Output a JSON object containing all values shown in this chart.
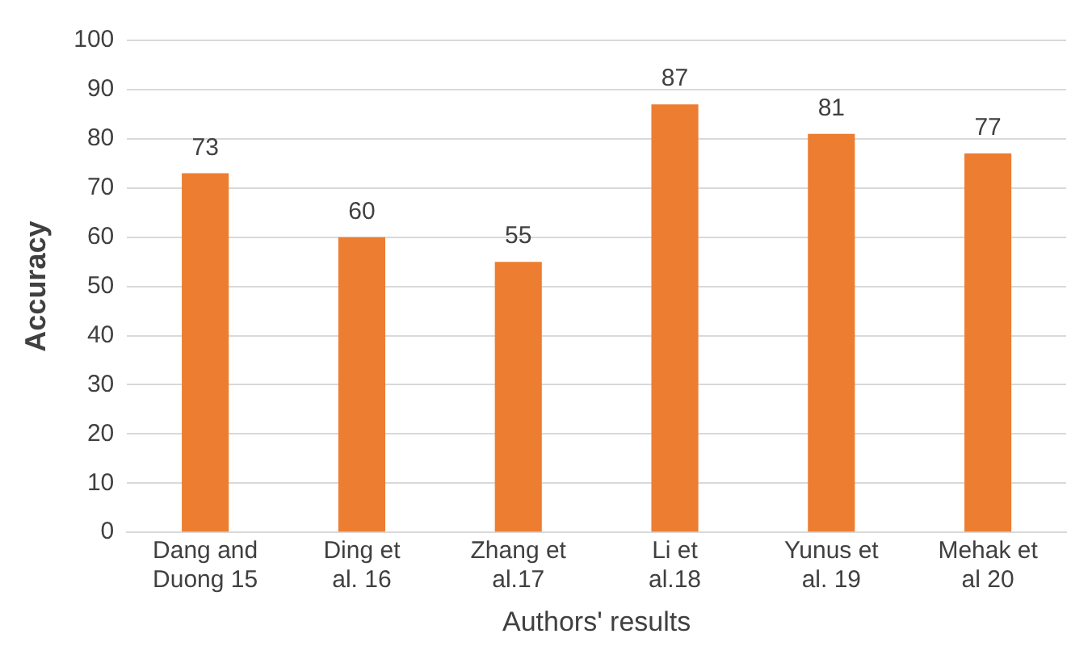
{
  "chart_data": {
    "type": "bar",
    "xlabel": "Authors' results",
    "ylabel": "Accuracy",
    "categories": [
      "Dang and Duong 15",
      "Ding et al. 16",
      "Zhang et al.17",
      "Li et al.18",
      "Yunus et al. 19",
      "Mehak et al 20"
    ],
    "values": [
      73,
      60,
      55,
      87,
      81,
      77
    ],
    "color": "#ed7d31",
    "ylim": [
      0,
      100
    ],
    "yticks": [
      0,
      10,
      20,
      30,
      40,
      50,
      60,
      70,
      80,
      90,
      100
    ],
    "grid": "y",
    "data_labels": true,
    "legend": false
  }
}
